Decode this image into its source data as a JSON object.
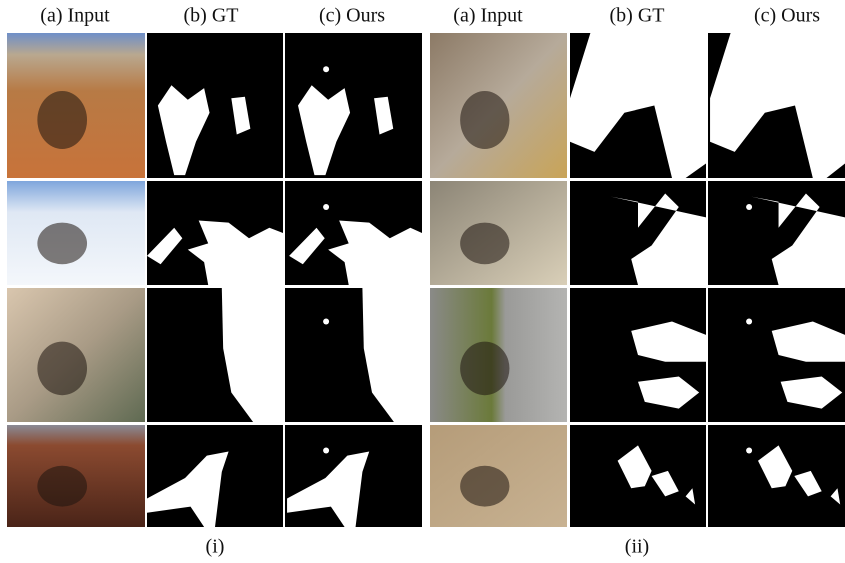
{
  "panels": [
    {
      "headers": [
        "(a) Input",
        "(b) GT",
        "(c) Ours"
      ],
      "caption": "(i)"
    },
    {
      "headers": [
        "(a) Input",
        "(b) GT",
        "(c) Ours"
      ],
      "caption": "(ii)"
    }
  ]
}
